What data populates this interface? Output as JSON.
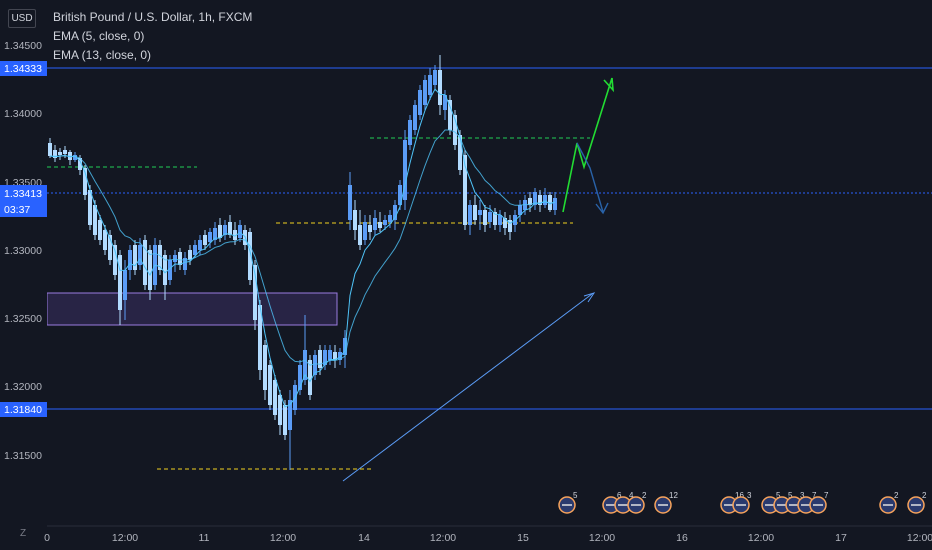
{
  "header": {
    "currency": "USD",
    "symbol_line": "British Pound / U.S. Dollar, 1h, FXCM",
    "indicators": [
      "EMA (5, close, 0)",
      "EMA (13, close, 0)"
    ]
  },
  "price_axis": {
    "ticks": [
      "1.34500",
      "1.34000",
      "1.33500",
      "1.33000",
      "1.32500",
      "1.32000",
      "1.31500"
    ],
    "level_badges": [
      "1.34333",
      "1.31840"
    ],
    "current_price": "1.33413",
    "countdown": "03:37"
  },
  "time_axis": {
    "labels": [
      "0",
      "12:00",
      "11",
      "12:00",
      "14",
      "12:00",
      "15",
      "12:00",
      "16",
      "12:00",
      "17",
      "12:00"
    ]
  },
  "event_badges": [
    "5",
    "6",
    "4",
    "2",
    "12",
    "16",
    "3",
    "5",
    "5",
    "3",
    "7",
    "7",
    "2",
    "2"
  ],
  "bottom_left": "Z",
  "colors": {
    "background": "#131722",
    "bull": "#5b9cf6",
    "bear": "#b2dbff",
    "level_line": "#2962ff",
    "ema": "#4fc3f7",
    "green_projection": "#22dd33",
    "zone": "#9a7be0"
  }
}
